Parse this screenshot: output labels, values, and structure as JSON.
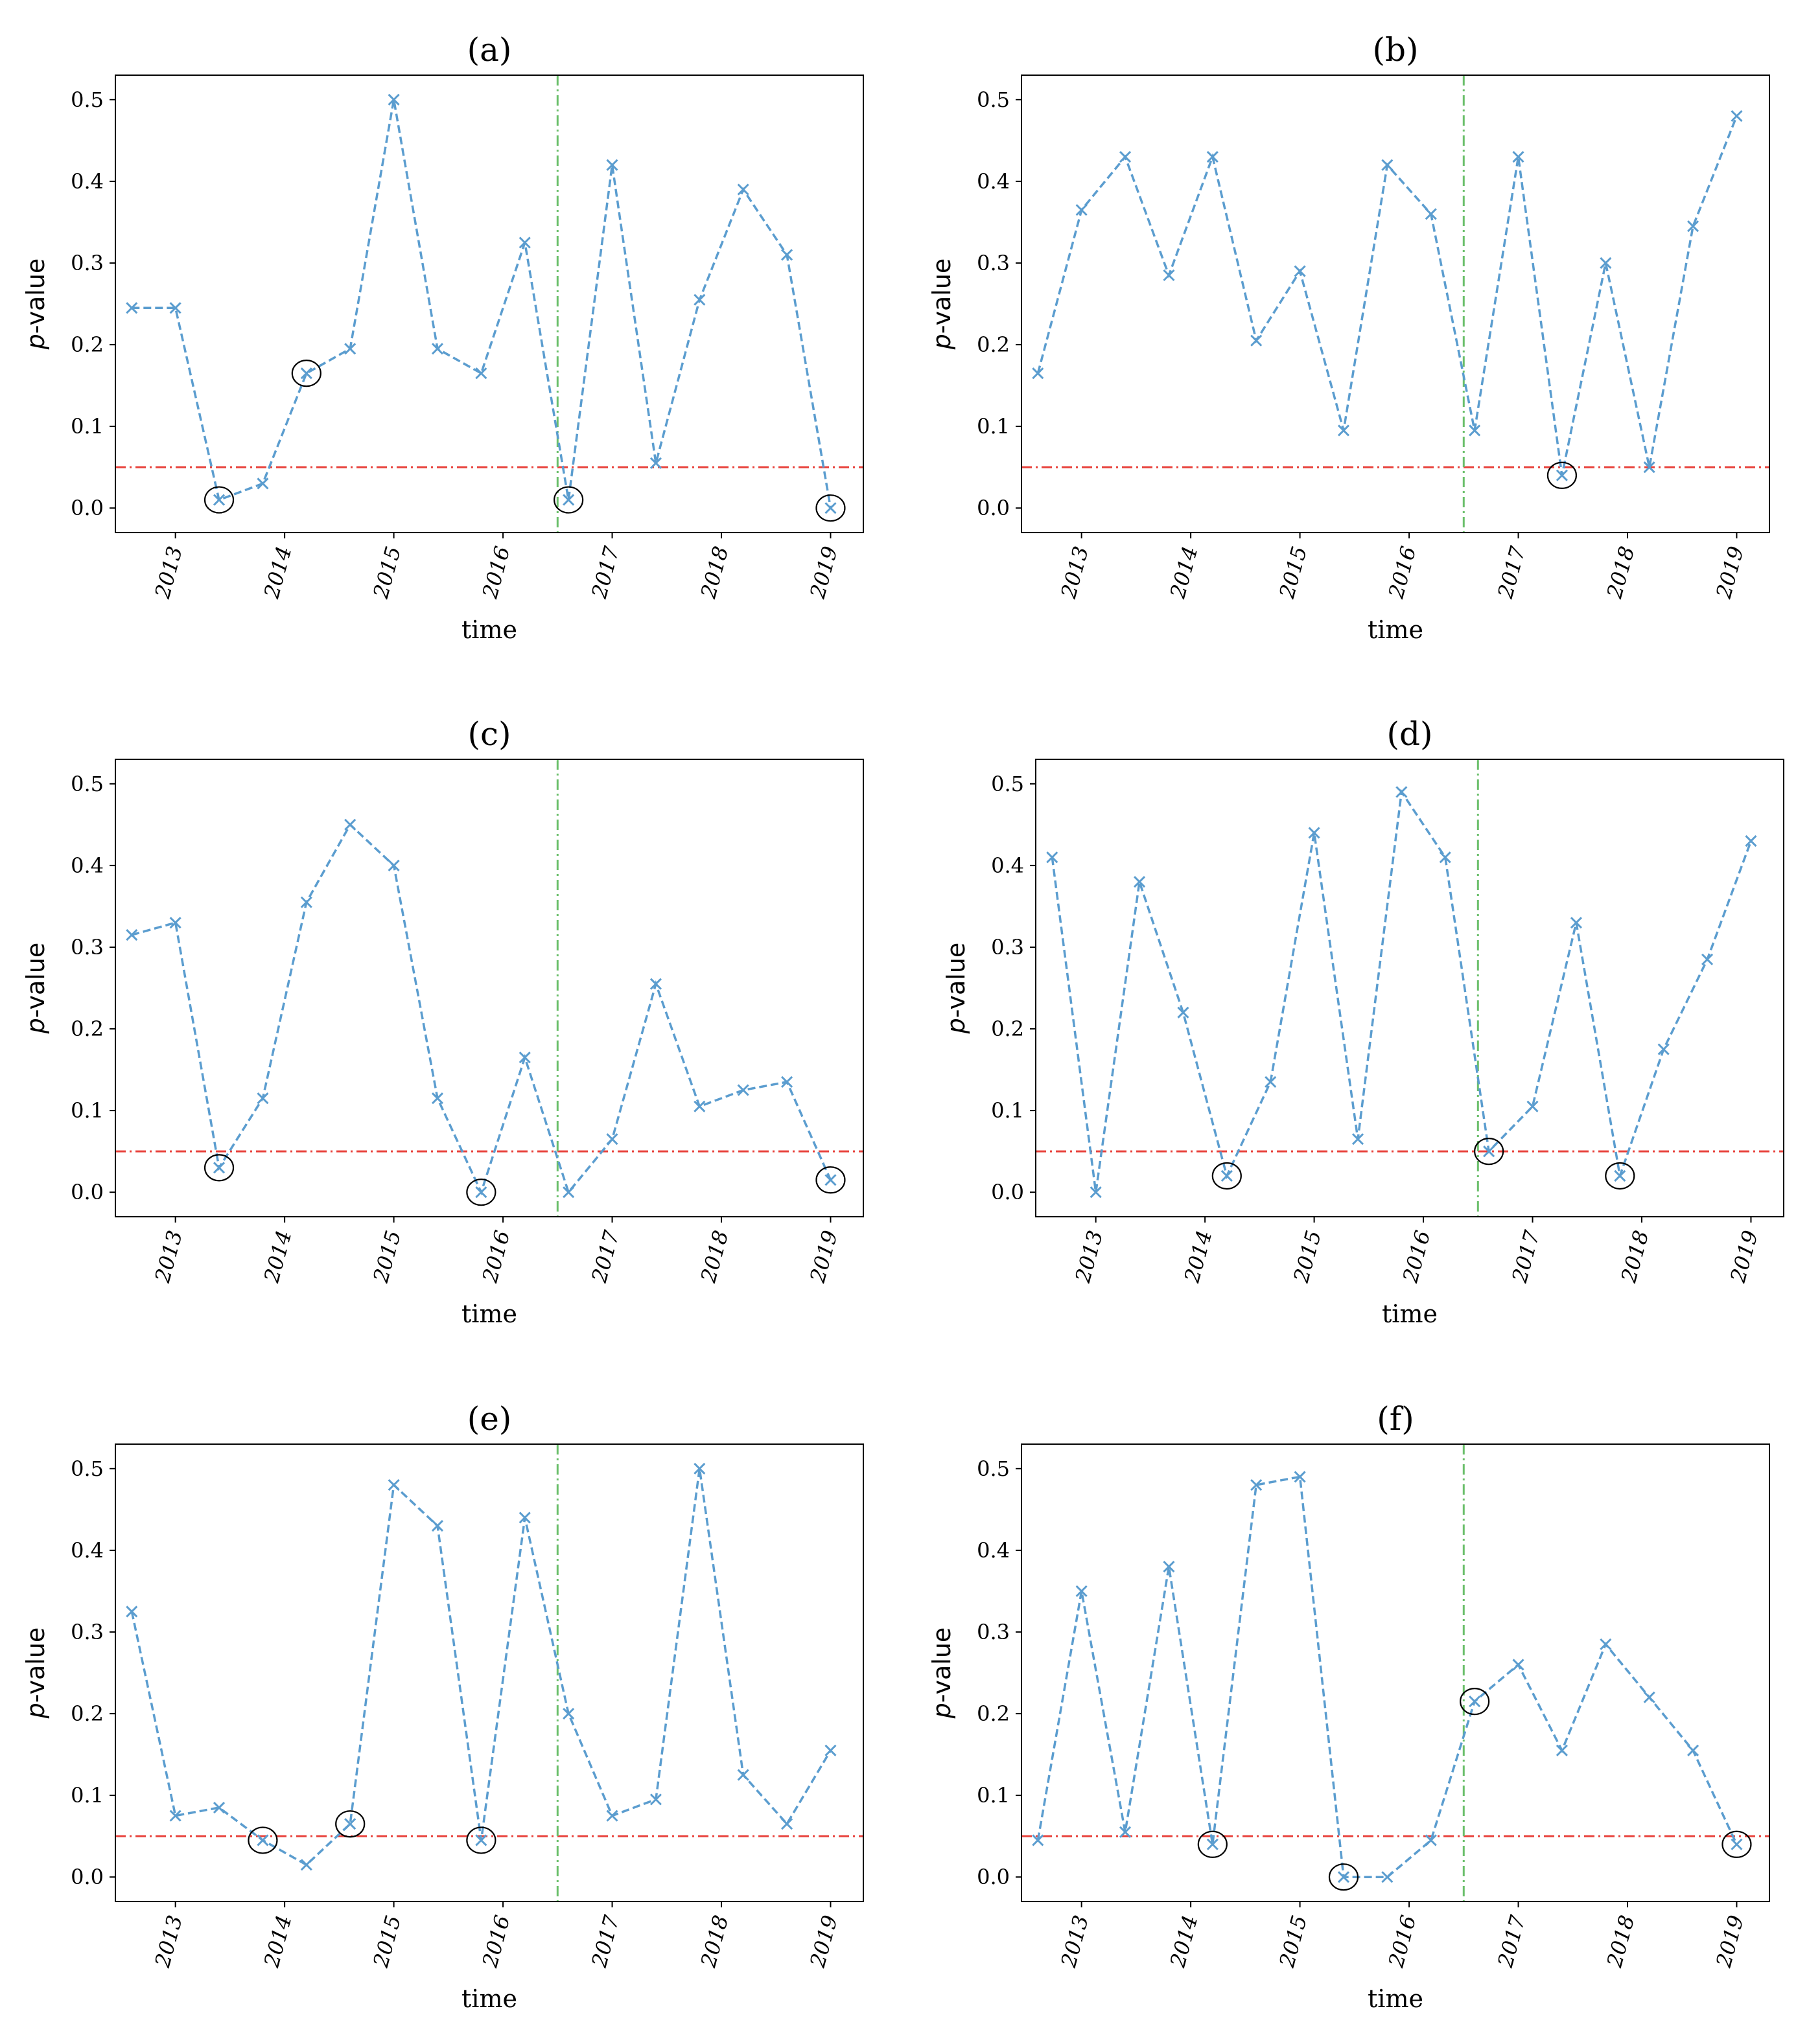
{
  "chart_data": [
    {
      "type": "line",
      "title": "(a)",
      "xlabel": "time",
      "ylabel_italic": "p",
      "ylabel_rest": "-value",
      "x": [
        2012.6,
        2013.0,
        2013.4,
        2013.8,
        2014.2,
        2014.6,
        2015.0,
        2015.4,
        2015.8,
        2016.2,
        2016.6,
        2017.0,
        2017.4,
        2017.8,
        2018.2,
        2018.6,
        2019.0
      ],
      "values": [
        0.245,
        0.245,
        0.01,
        0.03,
        0.165,
        0.195,
        0.5,
        0.195,
        0.165,
        0.325,
        0.01,
        0.42,
        0.055,
        0.255,
        0.39,
        0.31,
        0.0
      ],
      "circled": [
        2,
        4,
        10,
        16
      ],
      "xticks": [
        "2013",
        "2014",
        "2015",
        "2016",
        "2017",
        "2018",
        "2019"
      ],
      "yticks": [
        "0.0",
        "0.1",
        "0.2",
        "0.3",
        "0.4",
        "0.5"
      ],
      "xlim": [
        2012.45,
        2019.3
      ],
      "ylim": [
        -0.03,
        0.53
      ],
      "threshold": 0.05,
      "vline": 2016.5,
      "series_color": "#5b9dcf",
      "threshold_color": "#e8403a",
      "vline_color": "#6bbf6b",
      "grid": false
    },
    {
      "type": "line",
      "title": "(b)",
      "xlabel": "time",
      "ylabel_italic": "p",
      "ylabel_rest": "-value",
      "x": [
        2012.6,
        2013.0,
        2013.4,
        2013.8,
        2014.2,
        2014.6,
        2015.0,
        2015.4,
        2015.8,
        2016.2,
        2016.6,
        2017.0,
        2017.4,
        2017.8,
        2018.2,
        2018.6,
        2019.0
      ],
      "values": [
        0.165,
        0.365,
        0.43,
        0.285,
        0.43,
        0.205,
        0.29,
        0.095,
        0.42,
        0.36,
        0.095,
        0.43,
        0.04,
        0.3,
        0.05,
        0.345,
        0.48
      ],
      "circled": [
        12
      ],
      "xticks": [
        "2013",
        "2014",
        "2015",
        "2016",
        "2017",
        "2018",
        "2019"
      ],
      "yticks": [
        "0.0",
        "0.1",
        "0.2",
        "0.3",
        "0.4",
        "0.5"
      ],
      "xlim": [
        2012.45,
        2019.3
      ],
      "ylim": [
        -0.03,
        0.53
      ],
      "threshold": 0.05,
      "vline": 2016.5,
      "series_color": "#5b9dcf",
      "threshold_color": "#e8403a",
      "vline_color": "#6bbf6b",
      "grid": false
    },
    {
      "type": "line",
      "title": "(c)",
      "xlabel": "time",
      "ylabel_italic": "p",
      "ylabel_rest": "-value",
      "x": [
        2012.6,
        2013.0,
        2013.4,
        2013.8,
        2014.2,
        2014.6,
        2015.0,
        2015.4,
        2015.8,
        2016.2,
        2016.6,
        2017.0,
        2017.4,
        2017.8,
        2018.2,
        2018.6,
        2019.0
      ],
      "values": [
        0.315,
        0.33,
        0.03,
        0.115,
        0.355,
        0.45,
        0.4,
        0.115,
        0.0,
        0.165,
        0.0,
        0.065,
        0.255,
        0.105,
        0.125,
        0.135,
        0.015
      ],
      "circled": [
        2,
        8,
        16
      ],
      "xticks": [
        "2013",
        "2014",
        "2015",
        "2016",
        "2017",
        "2018",
        "2019"
      ],
      "yticks": [
        "0.0",
        "0.1",
        "0.2",
        "0.3",
        "0.4",
        "0.5"
      ],
      "xlim": [
        2012.45,
        2019.3
      ],
      "ylim": [
        -0.03,
        0.53
      ],
      "threshold": 0.05,
      "vline": 2016.5,
      "series_color": "#5b9dcf",
      "threshold_color": "#e8403a",
      "vline_color": "#6bbf6b",
      "grid": false
    },
    {
      "type": "line",
      "title": "(d)",
      "xlabel": "time",
      "ylabel_italic": "p",
      "ylabel_rest": "-value",
      "x": [
        2012.6,
        2013.0,
        2013.4,
        2013.8,
        2014.2,
        2014.6,
        2015.0,
        2015.4,
        2015.8,
        2016.2,
        2016.6,
        2017.0,
        2017.4,
        2017.8,
        2018.2,
        2018.6,
        2019.0
      ],
      "values": [
        0.41,
        0.0,
        0.38,
        0.22,
        0.02,
        0.135,
        0.44,
        0.065,
        0.49,
        0.41,
        0.05,
        0.105,
        0.33,
        0.02,
        0.175,
        0.285,
        0.43
      ],
      "circled": [
        4,
        10,
        13
      ],
      "xticks": [
        "2013",
        "2014",
        "2015",
        "2016",
        "2017",
        "2018",
        "2019"
      ],
      "yticks": [
        "0.0",
        "0.1",
        "0.2",
        "0.3",
        "0.4",
        "0.5"
      ],
      "xlim": [
        2012.45,
        2019.3
      ],
      "ylim": [
        -0.03,
        0.53
      ],
      "threshold": 0.05,
      "vline": 2016.5,
      "series_color": "#5b9dcf",
      "threshold_color": "#e8403a",
      "vline_color": "#6bbf6b",
      "grid": false
    },
    {
      "type": "line",
      "title": "(e)",
      "xlabel": "time",
      "ylabel_italic": "p",
      "ylabel_rest": "-value",
      "x": [
        2012.6,
        2013.0,
        2013.4,
        2013.8,
        2014.2,
        2014.6,
        2015.0,
        2015.4,
        2015.8,
        2016.2,
        2016.6,
        2017.0,
        2017.4,
        2017.8,
        2018.2,
        2018.6,
        2019.0
      ],
      "values": [
        0.325,
        0.075,
        0.085,
        0.045,
        0.015,
        0.065,
        0.48,
        0.43,
        0.045,
        0.44,
        0.2,
        0.075,
        0.095,
        0.5,
        0.125,
        0.065,
        0.155
      ],
      "circled": [
        3,
        5,
        8
      ],
      "xticks": [
        "2013",
        "2014",
        "2015",
        "2016",
        "2017",
        "2018",
        "2019"
      ],
      "yticks": [
        "0.0",
        "0.1",
        "0.2",
        "0.3",
        "0.4",
        "0.5"
      ],
      "xlim": [
        2012.45,
        2019.3
      ],
      "ylim": [
        -0.03,
        0.53
      ],
      "threshold": 0.05,
      "vline": 2016.5,
      "series_color": "#5b9dcf",
      "threshold_color": "#e8403a",
      "vline_color": "#6bbf6b",
      "grid": false
    },
    {
      "type": "line",
      "title": "(f)",
      "xlabel": "time",
      "ylabel_italic": "p",
      "ylabel_rest": "-value",
      "x": [
        2012.6,
        2013.0,
        2013.4,
        2013.8,
        2014.2,
        2014.6,
        2015.0,
        2015.4,
        2015.8,
        2016.2,
        2016.6,
        2017.0,
        2017.4,
        2017.8,
        2018.2,
        2018.6,
        2019.0
      ],
      "values": [
        0.045,
        0.35,
        0.055,
        0.38,
        0.04,
        0.48,
        0.49,
        0.0,
        0.0,
        0.045,
        0.215,
        0.26,
        0.155,
        0.285,
        0.22,
        0.155,
        0.04
      ],
      "circled": [
        4,
        7,
        10,
        16
      ],
      "xticks": [
        "2013",
        "2014",
        "2015",
        "2016",
        "2017",
        "2018",
        "2019"
      ],
      "yticks": [
        "0.0",
        "0.1",
        "0.2",
        "0.3",
        "0.4",
        "0.5"
      ],
      "xlim": [
        2012.45,
        2019.3
      ],
      "ylim": [
        -0.03,
        0.53
      ],
      "threshold": 0.05,
      "vline": 2016.5,
      "series_color": "#5b9dcf",
      "threshold_color": "#e8403a",
      "vline_color": "#6bbf6b",
      "grid": false
    }
  ]
}
